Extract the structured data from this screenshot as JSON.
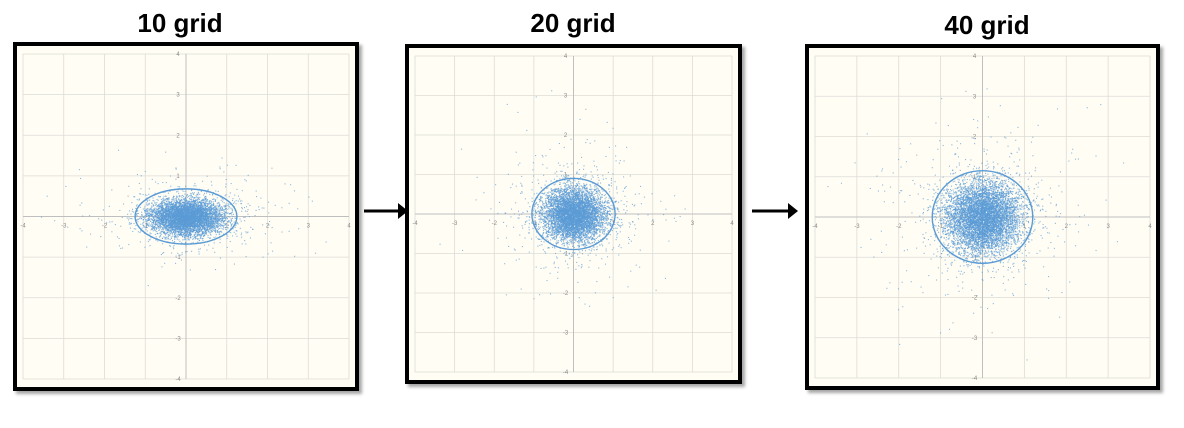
{
  "panels": [
    {
      "title": "10 grid"
    },
    {
      "title": "20 grid"
    },
    {
      "title": "40 grid"
    }
  ],
  "colors": {
    "points": "#5b9bd5",
    "ellipse": "#5b9bd5",
    "background": "#fffdf4",
    "gridlines": "#dcdcd6",
    "axes": "#bfbfbf",
    "frame": "#000000",
    "arrow": "#000000"
  },
  "chart_data": [
    {
      "type": "scatter",
      "title": "10 grid",
      "xlim": [
        -4,
        4
      ],
      "ylim": [
        -4,
        4
      ],
      "xticks": [
        -4,
        -3,
        -2,
        -1,
        0,
        1,
        2,
        3,
        4
      ],
      "yticks": [
        -4,
        -3,
        -2,
        -1,
        0,
        1,
        2,
        3,
        4
      ],
      "grid": true,
      "cluster": {
        "center": [
          0.0,
          0.0
        ],
        "spread_x": 0.45,
        "spread_y": 0.22,
        "approx_points": 6000
      },
      "ellipse": {
        "center": [
          0.0,
          0.0
        ],
        "rx": 1.25,
        "ry": 0.68
      }
    },
    {
      "type": "scatter",
      "title": "20 grid",
      "xlim": [
        -4,
        4
      ],
      "ylim": [
        -4,
        4
      ],
      "xticks": [
        -4,
        -3,
        -2,
        -1,
        0,
        1,
        2,
        3,
        4
      ],
      "yticks": [
        -4,
        -3,
        -2,
        -1,
        0,
        1,
        2,
        3,
        4
      ],
      "grid": true,
      "cluster": {
        "center": [
          0.0,
          0.0
        ],
        "spread_x": 0.4,
        "spread_y": 0.35,
        "approx_points": 6000
      },
      "ellipse": {
        "center": [
          0.0,
          0.0
        ],
        "rx": 1.05,
        "ry": 0.9
      }
    },
    {
      "type": "scatter",
      "title": "40 grid",
      "xlim": [
        -4,
        4
      ],
      "ylim": [
        -4,
        4
      ],
      "xticks": [
        -4,
        -3,
        -2,
        -1,
        0,
        1,
        2,
        3,
        4
      ],
      "yticks": [
        -4,
        -3,
        -2,
        -1,
        0,
        1,
        2,
        3,
        4
      ],
      "grid": true,
      "cluster": {
        "center": [
          0.0,
          0.0
        ],
        "spread_x": 0.45,
        "spread_y": 0.45,
        "approx_points": 7000
      },
      "ellipse": {
        "center": [
          0.0,
          0.0
        ],
        "rx": 1.2,
        "ry": 1.15
      }
    }
  ]
}
